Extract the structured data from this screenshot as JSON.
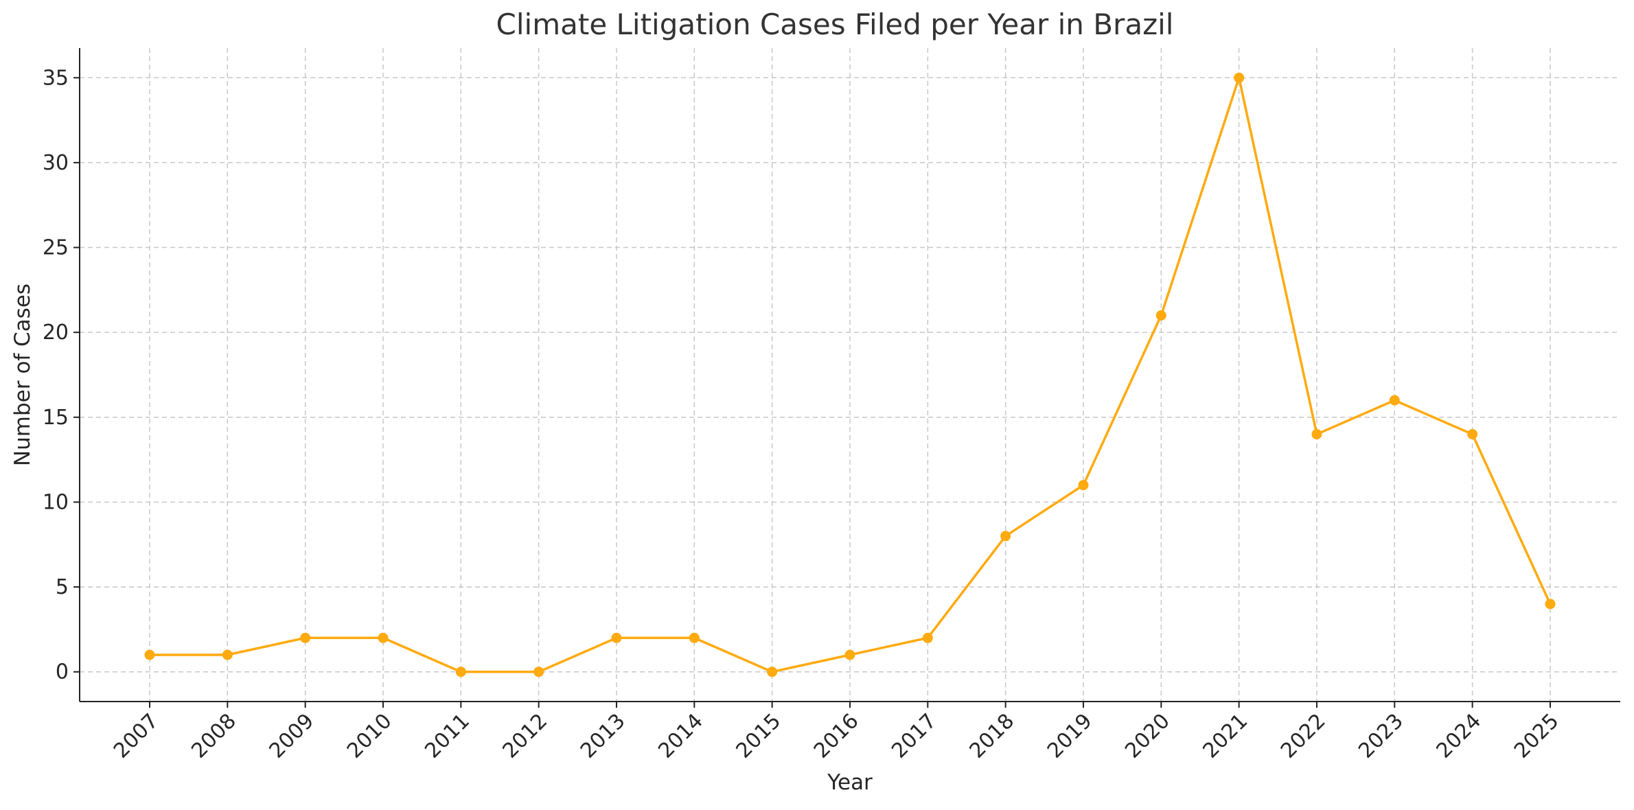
{
  "chart_data": {
    "type": "line",
    "title": "Climate Litigation Cases Filed per Year in Brazil",
    "xlabel": "Year",
    "ylabel": "Number of Cases",
    "categories": [
      "2007",
      "2008",
      "2009",
      "2010",
      "2011",
      "2012",
      "2013",
      "2014",
      "2015",
      "2016",
      "2017",
      "2018",
      "2019",
      "2020",
      "2021",
      "2022",
      "2023",
      "2024",
      "2025"
    ],
    "series": [
      {
        "values": [
          1,
          1,
          2,
          2,
          0,
          0,
          2,
          2,
          0,
          1,
          2,
          8,
          11,
          21,
          35,
          14,
          16,
          14,
          4
        ]
      }
    ],
    "ylim": [
      -1.75,
      36.75
    ],
    "yticks": [
      0,
      5,
      10,
      15,
      20,
      25,
      30,
      35
    ],
    "grid": true,
    "marker": "circle",
    "color": "#FFAA0F"
  }
}
